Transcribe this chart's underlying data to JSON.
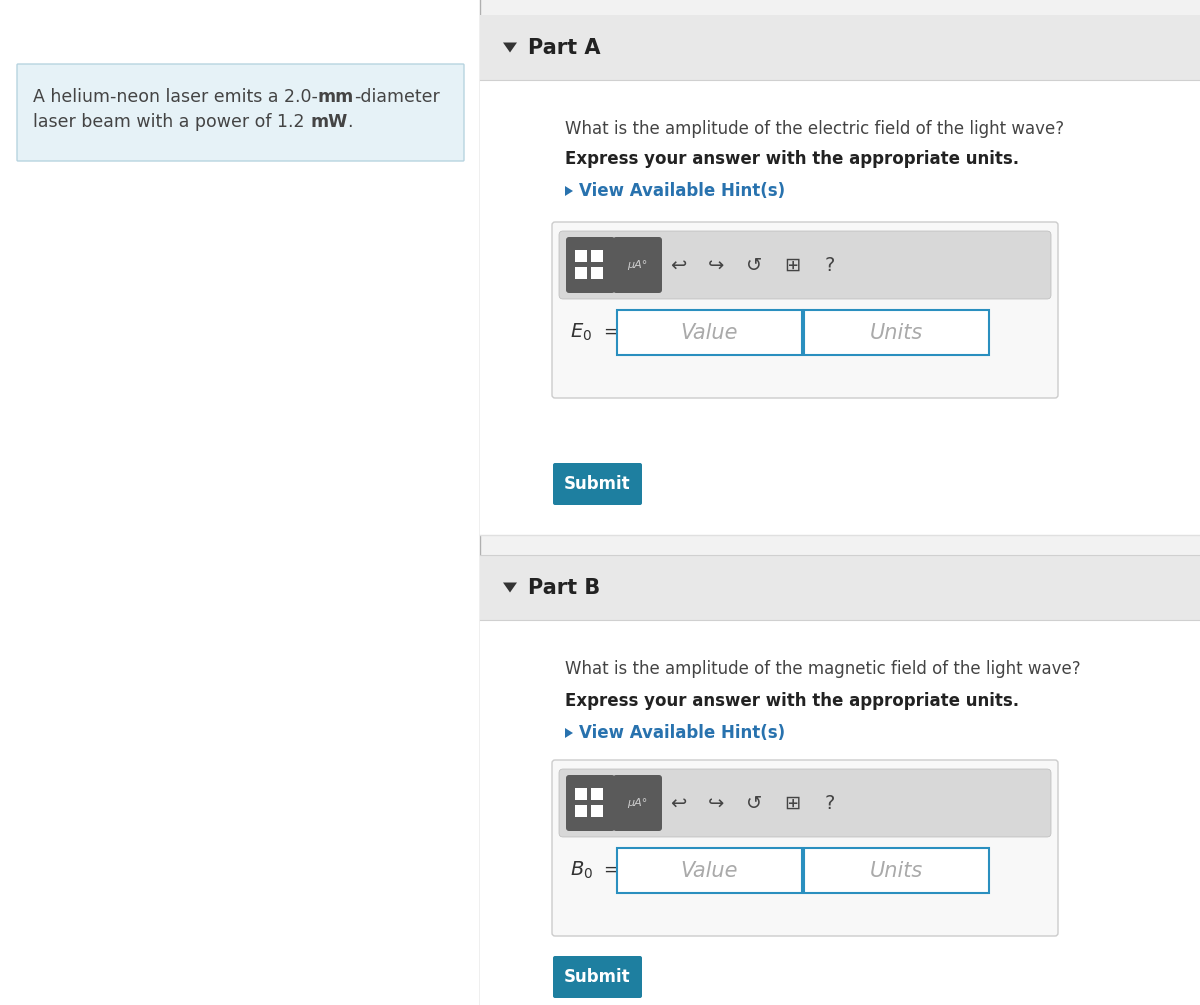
{
  "bg_color": "#ffffff",
  "left_panel_bg": "#e6f2f7",
  "left_panel_border": "#b8d4e0",
  "right_panel_bg": "#f2f2f2",
  "part_header_bg": "#e8e8e8",
  "part_header_border": "#d0d0d0",
  "content_bg": "#ffffff",
  "widget_bg": "#f8f8f8",
  "widget_border": "#cccccc",
  "toolbar_bg": "#d8d8d8",
  "toolbar_border": "#bbbbbb",
  "btn_dark": "#5a5a5a",
  "input_border": "#2a8fbf",
  "input_bg": "#ffffff",
  "submit_bg": "#1e7fa0",
  "submit_text_color": "#ffffff",
  "hint_color": "#2872ae",
  "text_dark": "#222222",
  "text_gray": "#444444",
  "text_placeholder": "#aaaaaa",
  "separator_color": "#b0b0b0",
  "part_A_label": "Part A",
  "part_B_label": "Part B",
  "question_A": "What is the amplitude of the electric field of the light wave?",
  "question_B": "What is the amplitude of the magnetic field of the light wave?",
  "bold_instruction": "Express your answer with the appropriate units.",
  "hint_text": "View Available Hint(s)",
  "submit_text": "Submit",
  "value_placeholder": "Value",
  "units_placeholder": "Units",
  "left_line1a": "A helium-neon laser emits a 2.0-",
  "left_line1b": "mm",
  "left_line1c": "-diameter",
  "left_line2a": "laser beam with a power of 1.2 ",
  "left_line2b": "mW",
  "left_line2c": "."
}
